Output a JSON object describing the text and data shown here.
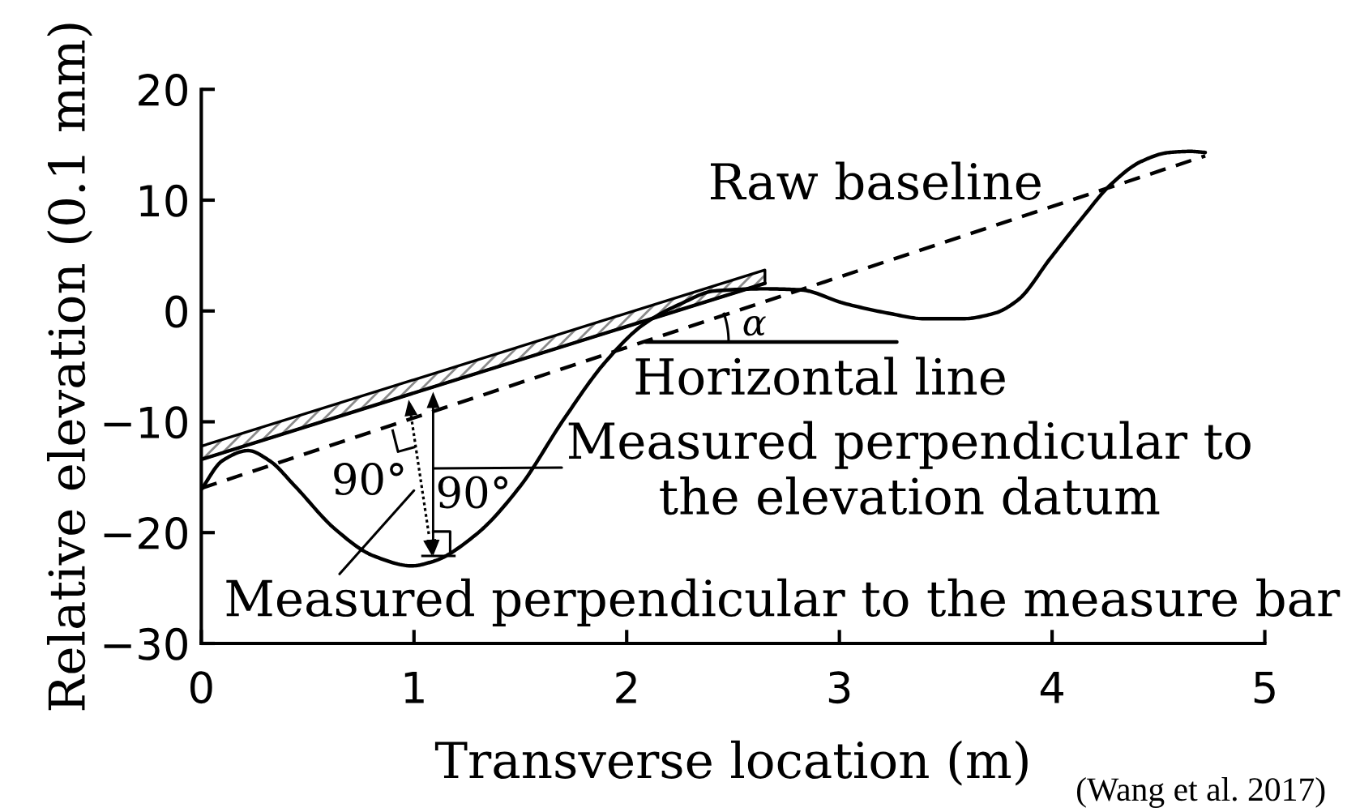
{
  "chart_data": {
    "type": "line",
    "xlabel": "Transverse location (m)",
    "ylabel": "Relative elevation (0.1 mm)",
    "xlim": [
      0,
      5
    ],
    "ylim": [
      -30,
      20
    ],
    "xticks": [
      0,
      1,
      2,
      3,
      4,
      5
    ],
    "yticks": [
      -30,
      -20,
      -10,
      0,
      10,
      20
    ],
    "series": [
      {
        "x": [
          0,
          0.1,
          0.22,
          0.32,
          0.44,
          0.63,
          0.81,
          0.99,
          1.09,
          1.29,
          1.5,
          1.7,
          1.9,
          2.08,
          2.26,
          2.41,
          2.64,
          2.82,
          3.02,
          3.23,
          3.4,
          3.58,
          3.73,
          3.84,
          3.99,
          4.15,
          4.27,
          4.42,
          4.55,
          4.65,
          4.72
        ],
        "values": [
          -16.1,
          -13.5,
          -12.6,
          -13.5,
          -15.8,
          -19.7,
          -22.1,
          -23,
          -22.6,
          -20.2,
          -15.8,
          -9.9,
          -4.6,
          -1.2,
          0.7,
          1.8,
          2,
          1.9,
          0.7,
          -0.2,
          -0.7,
          -0.7,
          -0.2,
          1,
          4.7,
          8.6,
          11.3,
          13.5,
          14.3,
          14.4,
          14.3
        ],
        "color": "#000000"
      },
      {
        "x": [
          0,
          4.72
        ],
        "values": [
          -16,
          14
        ],
        "color": "#000000",
        "line_style": "dashed"
      },
      {
        "x": [
          0,
          2.65
        ],
        "values": [
          -13.4,
          2.5
        ],
        "lower": [
          -13.4,
          2.5
        ],
        "upper": [
          -12.2,
          3.7
        ],
        "color": "#000000"
      },
      {
        "x": [
          2.09,
          3.27
        ],
        "values": [
          -2.8,
          -2.8
        ],
        "color": "#000000"
      }
    ],
    "annotations": [
      "Raw baseline",
      "α",
      "Horizontal line",
      "Measured perpendicular to\nthe elevation datum",
      "90°",
      {
        "text": "90°",
        "x": 1.09,
        "y": -22.1
      },
      "Measured perpendicular to the measure bar",
      "(Wang et al. 2017)"
    ]
  }
}
